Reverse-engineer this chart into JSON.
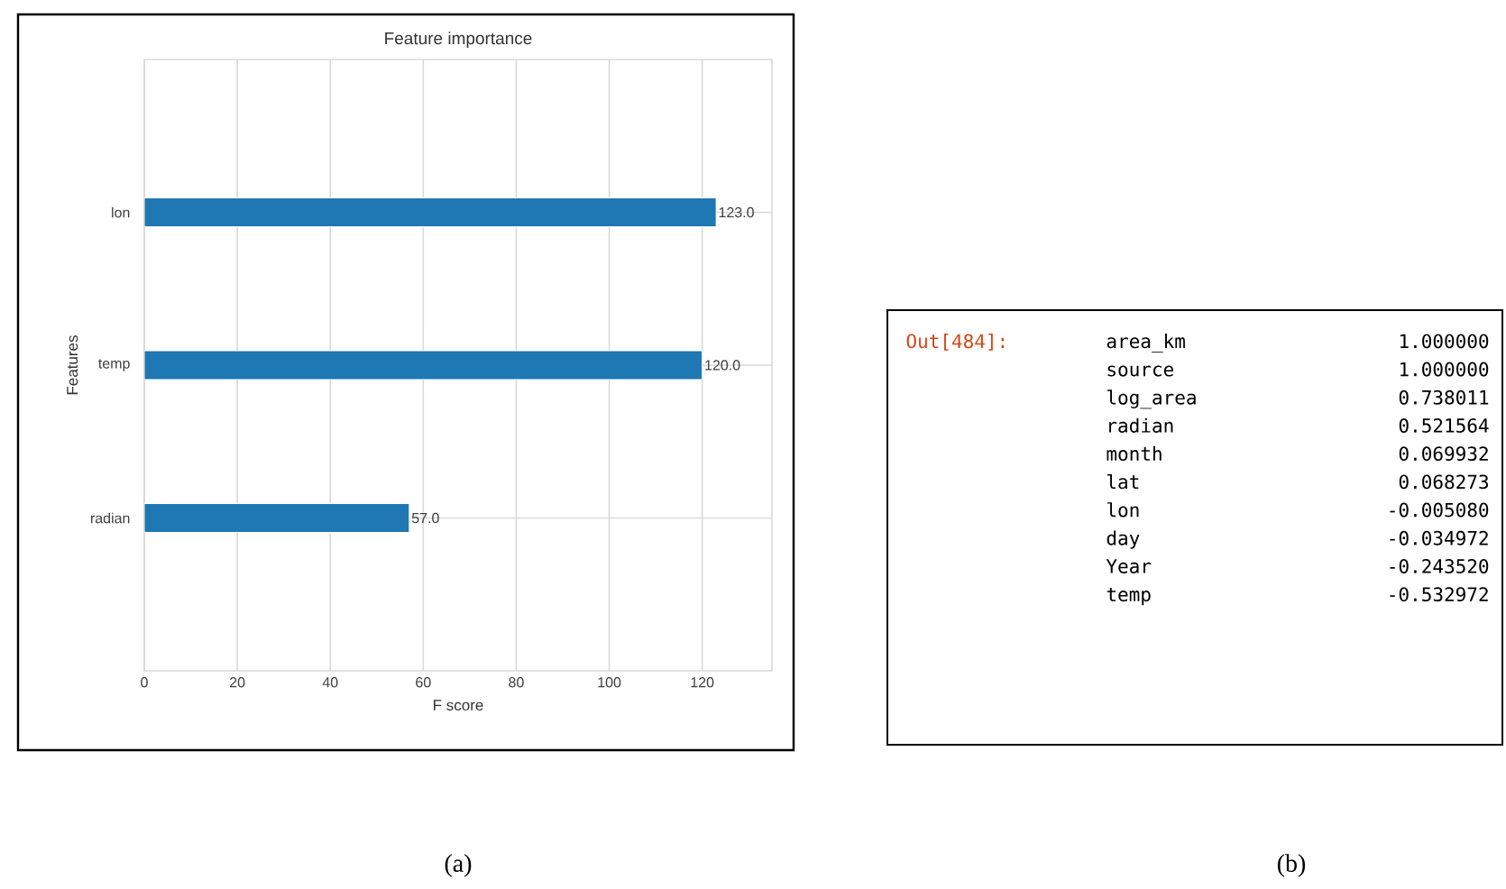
{
  "chart_data": [
    {
      "type": "bar",
      "orientation": "horizontal",
      "title": "Feature importance",
      "xlabel": "F score",
      "ylabel": "Features",
      "categories": [
        "lon",
        "temp",
        "radian"
      ],
      "values": [
        123,
        120,
        57
      ],
      "value_labels": [
        "123.0",
        "120.0",
        "57.0"
      ],
      "color": "#1f77b4",
      "xlim": [
        0,
        135
      ],
      "xticks": [
        0,
        20,
        40,
        60,
        80,
        100,
        120
      ],
      "grid": true,
      "annotations": [
        "(a)"
      ]
    },
    {
      "type": "other",
      "title": "Out[484]:",
      "annotations": [
        "area_km",
        "1.000000",
        "source",
        "1.000000",
        "log_area",
        "0.738011",
        "radian",
        "0.521564",
        "month",
        "0.069932",
        "lat",
        "0.068273",
        "lon",
        "-0.005080",
        "day",
        "-0.034972",
        "Year",
        "-0.243520",
        "temp",
        "-0.532972",
        "(b)"
      ]
    }
  ]
}
